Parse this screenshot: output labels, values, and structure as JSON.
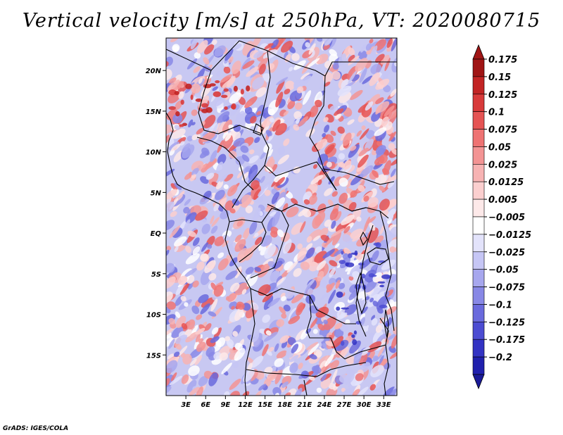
{
  "title": "Vertical velocity [m/s] at 250hPa, VT: 2020080715",
  "credit": "GrADS: IGES/COLA",
  "map": {
    "variable": "Vertical velocity",
    "units": "m/s",
    "level": "250hPa",
    "valid_time": "2020080715",
    "lon_range": [
      0,
      35
    ],
    "lat_range": [
      -20,
      24
    ],
    "lat_ticks": [
      {
        "value": 20,
        "label": "20N"
      },
      {
        "value": 15,
        "label": "15N"
      },
      {
        "value": 10,
        "label": "10N"
      },
      {
        "value": 5,
        "label": "5N"
      },
      {
        "value": 0,
        "label": "EQ"
      },
      {
        "value": -5,
        "label": "5S"
      },
      {
        "value": -10,
        "label": "10S"
      },
      {
        "value": -15,
        "label": "15S"
      }
    ],
    "lon_ticks": [
      {
        "value": 3,
        "label": "3E"
      },
      {
        "value": 6,
        "label": "6E"
      },
      {
        "value": 9,
        "label": "9E"
      },
      {
        "value": 12,
        "label": "12E"
      },
      {
        "value": 15,
        "label": "15E"
      },
      {
        "value": 18,
        "label": "18E"
      },
      {
        "value": 21,
        "label": "21E"
      },
      {
        "value": 24,
        "label": "24E"
      },
      {
        "value": 27,
        "label": "27E"
      },
      {
        "value": 30,
        "label": "30E"
      },
      {
        "value": 33,
        "label": "33E"
      }
    ]
  },
  "colorbar": {
    "levels": [
      {
        "label": "0.175",
        "color": "#a01515"
      },
      {
        "label": "0.15",
        "color": "#c22424"
      },
      {
        "label": "0.125",
        "color": "#d83a3a"
      },
      {
        "label": "0.1",
        "color": "#e55454"
      },
      {
        "label": "0.075",
        "color": "#ee7373"
      },
      {
        "label": "0.05",
        "color": "#f39494"
      },
      {
        "label": "0.025",
        "color": "#f7b3b3"
      },
      {
        "label": "0.0125",
        "color": "#fbcfcf"
      },
      {
        "label": "0.005",
        "color": "#fde9e9"
      },
      {
        "label": "−0.005",
        "color": "#ffffff"
      },
      {
        "label": "−0.0125",
        "color": "#e3e3fb"
      },
      {
        "label": "−0.025",
        "color": "#c6c6f5"
      },
      {
        "label": "−0.05",
        "color": "#a7a7ee"
      },
      {
        "label": "−0.075",
        "color": "#8888e6"
      },
      {
        "label": "−0.1",
        "color": "#6a6add"
      },
      {
        "label": "−0.125",
        "color": "#4c4cd2"
      },
      {
        "label": "−0.175",
        "color": "#3333c3"
      },
      {
        "label": "−0.2",
        "color": "#2020ad"
      }
    ],
    "top_color": "#a01515",
    "bottom_color": "#1a1a98"
  }
}
